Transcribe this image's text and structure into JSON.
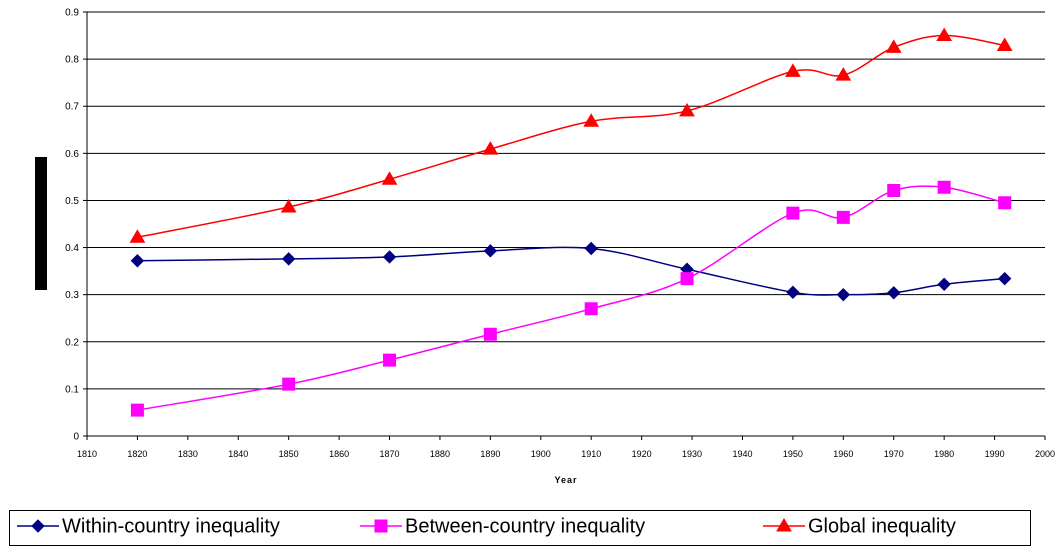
{
  "chart_data": {
    "type": "line",
    "x_label": "Year",
    "x": [
      1820,
      1850,
      1870,
      1890,
      1910,
      1929,
      1950,
      1960,
      1970,
      1980,
      1992
    ],
    "series": [
      {
        "name": "Within-country inequality",
        "color": "#000080",
        "marker": "diamond",
        "values": [
          0.372,
          0.376,
          0.38,
          0.393,
          0.398,
          0.354,
          0.305,
          0.3,
          0.304,
          0.322,
          0.334
        ]
      },
      {
        "name": "Between-country inequality",
        "color": "#ff00ff",
        "marker": "square",
        "values": [
          0.055,
          0.11,
          0.161,
          0.216,
          0.27,
          0.334,
          0.473,
          0.464,
          0.521,
          0.528,
          0.495
        ]
      },
      {
        "name": "Global inequality",
        "color": "#ff0000",
        "marker": "triangle",
        "values": [
          0.422,
          0.486,
          0.545,
          0.609,
          0.668,
          0.69,
          0.774,
          0.766,
          0.825,
          0.85,
          0.829
        ]
      }
    ],
    "xlim": [
      1810,
      2000
    ],
    "xticks": [
      1810,
      1820,
      1830,
      1840,
      1850,
      1860,
      1870,
      1880,
      1890,
      1900,
      1910,
      1920,
      1930,
      1940,
      1950,
      1960,
      1970,
      1980,
      1990,
      2000
    ],
    "ylim": [
      0,
      0.9
    ],
    "yticks": [
      0,
      0.1,
      0.2,
      0.3,
      0.4,
      0.5,
      0.6,
      0.7,
      0.8,
      0.9
    ],
    "grid": true,
    "legend": "bottom"
  }
}
